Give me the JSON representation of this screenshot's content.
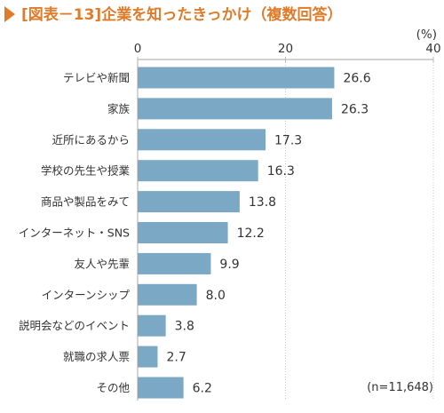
{
  "colors": {
    "title": "#e07b29",
    "bar": "#7ba8c4",
    "axis": "#b8b8b8",
    "grid": "#c8c8c8",
    "text": "#333333"
  },
  "title": "[図表－13]企業を知ったきっかけ（複数回答）",
  "unit_label": "(%)",
  "sample_note": "(n=11,648)",
  "chart_data": {
    "type": "bar",
    "orientation": "horizontal",
    "title": "[図表－13]企業を知ったきっかけ（複数回答）",
    "categories": [
      "テレビや新聞",
      "家族",
      "近所にあるから",
      "学校の先生や授業",
      "商品や製品をみて",
      "インターネット・SNS",
      "友人や先輩",
      "インターンシップ",
      "説明会などのイベント",
      "就職の求人票",
      "その他"
    ],
    "values": [
      26.6,
      26.3,
      17.3,
      16.3,
      13.8,
      12.2,
      9.9,
      8.0,
      3.8,
      2.7,
      6.2
    ],
    "value_labels": [
      "26.6",
      "26.3",
      "17.3",
      "16.3",
      "13.8",
      "12.2",
      "9.9",
      "8.0",
      "3.8",
      "2.7",
      "6.2"
    ],
    "xlim": [
      0,
      40
    ],
    "xticks": [
      0,
      20,
      40
    ],
    "xtick_labels": [
      "0",
      "20",
      "40"
    ],
    "unit": "(%)",
    "grid": true
  }
}
